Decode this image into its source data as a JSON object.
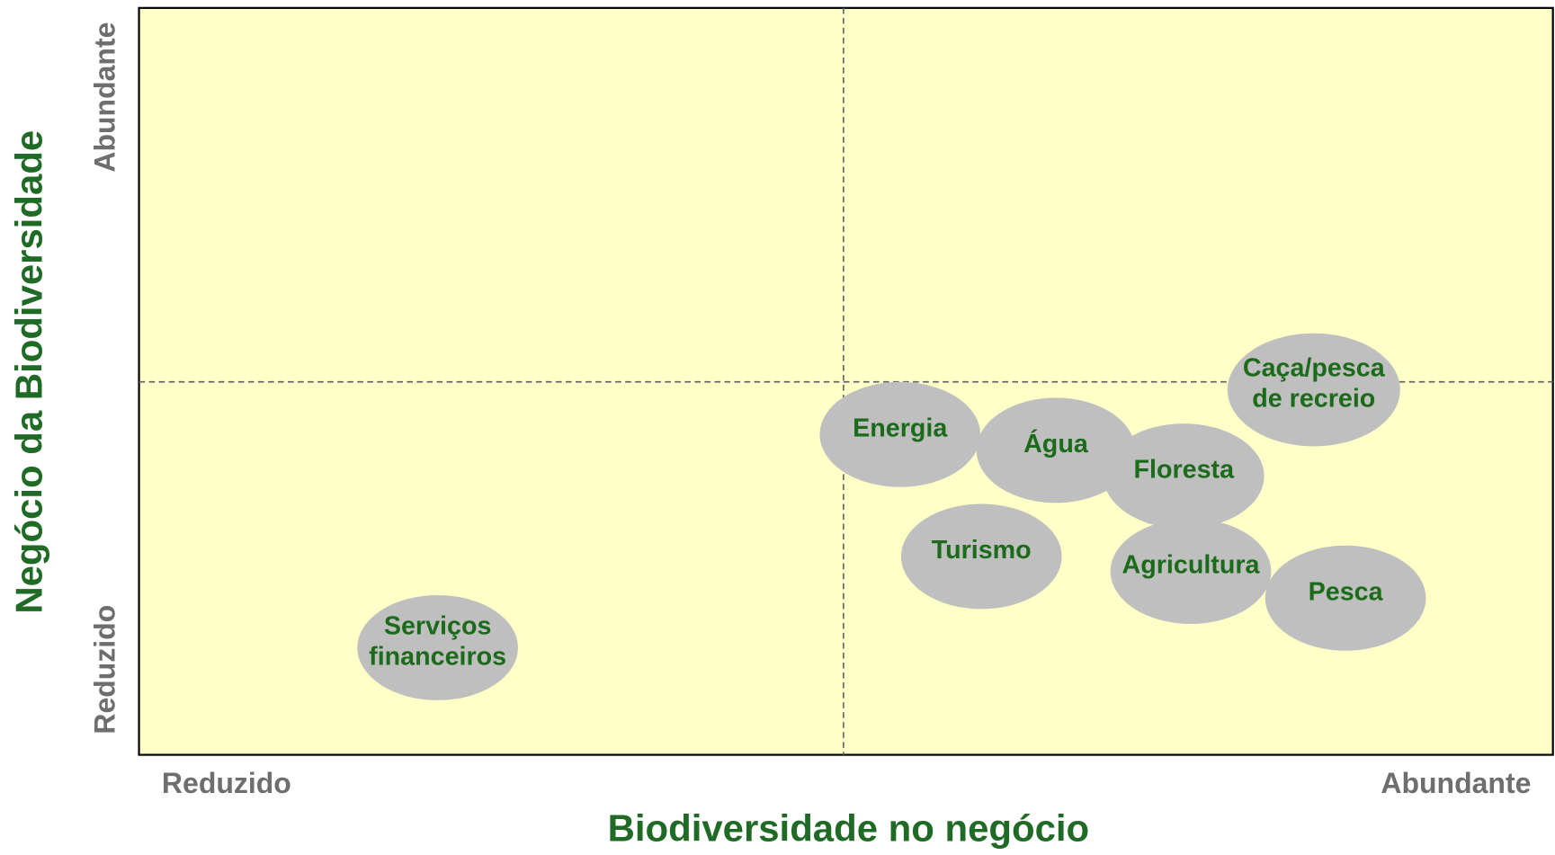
{
  "x_axis": {
    "title": "Biodiversidade no negócio",
    "low": "Reduzido",
    "high": "Abundante"
  },
  "y_axis": {
    "title": "Negócio da Biodiversidade",
    "low": "Reduzido",
    "high": "Abundante"
  },
  "nodes": [
    {
      "lines": [
        "Energia"
      ]
    },
    {
      "lines": [
        "Água"
      ]
    },
    {
      "lines": [
        "Floresta"
      ]
    },
    {
      "lines": [
        "Caça/pesca",
        "de recreio"
      ]
    },
    {
      "lines": [
        "Turismo"
      ]
    },
    {
      "lines": [
        "Agricultura"
      ]
    },
    {
      "lines": [
        "Pesca"
      ]
    },
    {
      "lines": [
        "Serviços",
        "financeiros"
      ]
    }
  ]
}
